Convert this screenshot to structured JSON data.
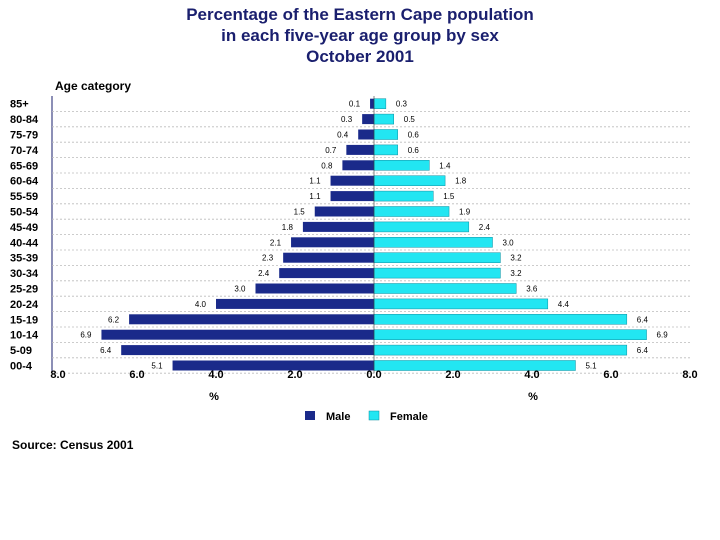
{
  "chart_data": {
    "type": "bar",
    "title_lines": [
      "Percentage of the Eastern Cape population",
      "in each five-year age group by sex",
      "October 2001"
    ],
    "ylabel": "Age category",
    "categories": [
      "85+",
      "80-84",
      "75-79",
      "70-74",
      "65-69",
      "60-64",
      "55-59",
      "50-54",
      "45-49",
      "40-44",
      "35-39",
      "30-34",
      "25-29",
      "20-24",
      "15-19",
      "10-14",
      "5-09",
      "00-4"
    ],
    "series": [
      {
        "name": "Male",
        "color": "#1a2a8a",
        "values": [
          0.1,
          0.3,
          0.4,
          0.7,
          0.8,
          1.1,
          1.1,
          1.5,
          1.8,
          2.1,
          2.3,
          2.4,
          3.0,
          4.0,
          6.2,
          6.9,
          6.4,
          5.1
        ],
        "labels": [
          "0.1",
          "0.3",
          "0.4",
          "0.7",
          "0.8",
          "1.1",
          "1.1",
          "1.5",
          "1.8",
          "2.1",
          "2.3",
          "2.4",
          "3.0",
          "4.0",
          "6.2",
          "6.9",
          "6.4",
          "5.1"
        ]
      },
      {
        "name": "Female",
        "color": "#22e6f2",
        "values": [
          0.3,
          0.5,
          0.6,
          0.6,
          1.4,
          1.8,
          1.5,
          1.9,
          2.4,
          3.0,
          3.2,
          3.2,
          3.6,
          4.4,
          6.4,
          6.9,
          6.4,
          5.1
        ],
        "labels": [
          "0.3",
          "0.5",
          "0.6",
          "0.6",
          "1.4",
          "1.8",
          "1.5",
          "1.9",
          "2.4",
          "3.0",
          "3.2",
          "3.2",
          "3.6",
          "4.4",
          "6.4",
          "6.9",
          "6.4",
          "5.1"
        ]
      }
    ],
    "xlim": [
      -8,
      8
    ],
    "x_ticks": [
      "8.0",
      "6.0",
      "4.0",
      "2.0",
      "0.0",
      "2.0",
      "4.0",
      "6.0",
      "8.0"
    ],
    "x_unit_left": "%",
    "x_unit_right": "%",
    "legend_position": "bottom-center",
    "source": "Source: Census 2001"
  }
}
